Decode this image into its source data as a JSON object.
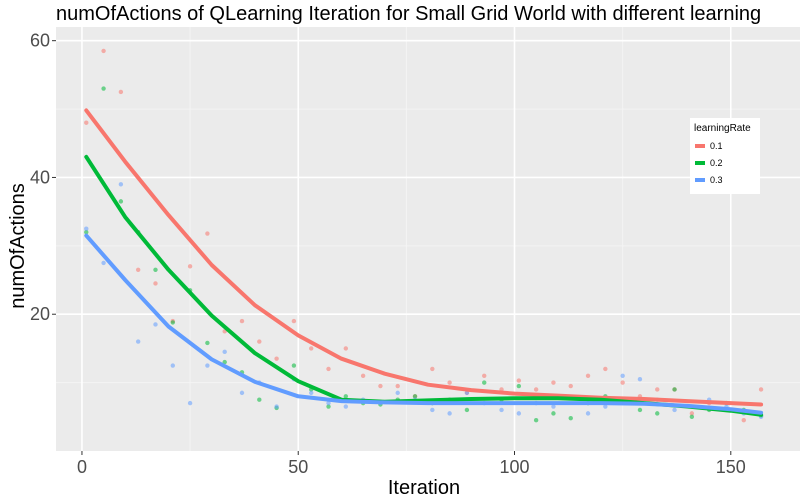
{
  "chart_data": {
    "type": "scatter",
    "title": "numOfActions of QLearning Iteration for Small Grid World with different learning",
    "xlabel": "Iteration",
    "ylabel": "numOfActions",
    "xlim": [
      -6,
      166
    ],
    "ylim": [
      0,
      62
    ],
    "xticks": [
      0,
      50,
      100,
      150
    ],
    "yticks": [
      20,
      40,
      60
    ],
    "grid": true,
    "legend": {
      "title": "learningRate",
      "placement": "right"
    },
    "series": [
      {
        "name": "0.1",
        "color": "#F8766D",
        "points": [
          [
            1,
            48
          ],
          [
            5,
            58.5
          ],
          [
            9,
            52.5
          ],
          [
            13,
            26.5
          ],
          [
            17,
            24.5
          ],
          [
            21,
            19
          ],
          [
            25,
            27
          ],
          [
            29,
            31.8
          ],
          [
            33,
            17.5
          ],
          [
            37,
            19
          ],
          [
            41,
            16
          ],
          [
            45,
            13.5
          ],
          [
            49,
            19
          ],
          [
            53,
            15
          ],
          [
            57,
            12
          ],
          [
            61,
            15
          ],
          [
            65,
            11
          ],
          [
            69,
            9.5
          ],
          [
            73,
            9.5
          ],
          [
            77,
            8
          ],
          [
            81,
            12
          ],
          [
            85,
            10
          ],
          [
            89,
            8.5
          ],
          [
            93,
            11
          ],
          [
            97,
            9
          ],
          [
            101,
            10.3
          ],
          [
            105,
            9
          ],
          [
            109,
            10
          ],
          [
            113,
            9.5
          ],
          [
            117,
            11
          ],
          [
            121,
            12
          ],
          [
            125,
            10
          ],
          [
            129,
            8
          ],
          [
            133,
            9
          ],
          [
            137,
            9
          ],
          [
            141,
            5.5
          ],
          [
            145,
            7
          ],
          [
            149,
            6
          ],
          [
            153,
            4.5
          ],
          [
            157,
            9
          ]
        ],
        "trend": [
          [
            1,
            49.8
          ],
          [
            10,
            42.3
          ],
          [
            20,
            34.5
          ],
          [
            30,
            27.2
          ],
          [
            40,
            21.3
          ],
          [
            50,
            16.9
          ],
          [
            60,
            13.5
          ],
          [
            70,
            11.3
          ],
          [
            80,
            9.7
          ],
          [
            90,
            8.9
          ],
          [
            100,
            8.4
          ],
          [
            110,
            8.1
          ],
          [
            120,
            7.8
          ],
          [
            130,
            7.6
          ],
          [
            140,
            7.3
          ],
          [
            150,
            7
          ],
          [
            157,
            6.8
          ]
        ]
      },
      {
        "name": "0.2",
        "color": "#00BA38",
        "points": [
          [
            1,
            32
          ],
          [
            5,
            53
          ],
          [
            9,
            36.5
          ],
          [
            13,
            32
          ],
          [
            17,
            26.5
          ],
          [
            21,
            18.8
          ],
          [
            25,
            23.5
          ],
          [
            29,
            15.8
          ],
          [
            33,
            13
          ],
          [
            37,
            11.5
          ],
          [
            41,
            7.5
          ],
          [
            45,
            6.3
          ],
          [
            49,
            12.5
          ],
          [
            53,
            9
          ],
          [
            57,
            6.5
          ],
          [
            61,
            8
          ],
          [
            65,
            7
          ],
          [
            69,
            6.8
          ],
          [
            73,
            7.5
          ],
          [
            77,
            8
          ],
          [
            81,
            7
          ],
          [
            85,
            7.5
          ],
          [
            89,
            6
          ],
          [
            93,
            10
          ],
          [
            97,
            7.5
          ],
          [
            101,
            9.5
          ],
          [
            105,
            4.5
          ],
          [
            109,
            5.5
          ],
          [
            113,
            4.8
          ],
          [
            117,
            7
          ],
          [
            121,
            8
          ],
          [
            125,
            7.5
          ],
          [
            129,
            6
          ],
          [
            133,
            5.5
          ],
          [
            137,
            9
          ],
          [
            141,
            5
          ],
          [
            145,
            6
          ],
          [
            149,
            7
          ],
          [
            153,
            6
          ],
          [
            157,
            5.2
          ]
        ],
        "trend": [
          [
            1,
            43
          ],
          [
            10,
            34.2
          ],
          [
            20,
            26.5
          ],
          [
            30,
            19.8
          ],
          [
            40,
            14.3
          ],
          [
            50,
            10.2
          ],
          [
            60,
            7.5
          ],
          [
            70,
            7.2
          ],
          [
            80,
            7.4
          ],
          [
            90,
            7.6
          ],
          [
            100,
            7.7
          ],
          [
            110,
            7.7
          ],
          [
            120,
            7.5
          ],
          [
            130,
            7
          ],
          [
            140,
            6.5
          ],
          [
            150,
            5.9
          ],
          [
            157,
            5.3
          ]
        ]
      },
      {
        "name": "0.3",
        "color": "#619CFF",
        "points": [
          [
            1,
            32.5
          ],
          [
            5,
            27.5
          ],
          [
            9,
            39
          ],
          [
            13,
            16
          ],
          [
            17,
            18.5
          ],
          [
            21,
            12.5
          ],
          [
            25,
            7
          ],
          [
            29,
            12.5
          ],
          [
            33,
            14.5
          ],
          [
            37,
            8.5
          ],
          [
            41,
            10
          ],
          [
            45,
            6.5
          ],
          [
            49,
            10.5
          ],
          [
            53,
            8.5
          ],
          [
            57,
            7
          ],
          [
            61,
            6.5
          ],
          [
            65,
            7.5
          ],
          [
            69,
            7
          ],
          [
            73,
            8.5
          ],
          [
            77,
            7.5
          ],
          [
            81,
            6
          ],
          [
            85,
            5.5
          ],
          [
            89,
            8.5
          ],
          [
            93,
            7
          ],
          [
            97,
            6
          ],
          [
            101,
            5.5
          ],
          [
            105,
            7
          ],
          [
            109,
            6.5
          ],
          [
            113,
            7.8
          ],
          [
            117,
            5.5
          ],
          [
            121,
            6.5
          ],
          [
            125,
            11
          ],
          [
            129,
            10.5
          ],
          [
            133,
            7.5
          ],
          [
            137,
            6
          ],
          [
            141,
            6.5
          ],
          [
            145,
            7.5
          ],
          [
            149,
            6.5
          ],
          [
            153,
            5.5
          ],
          [
            157,
            5
          ]
        ],
        "trend": [
          [
            1,
            31.5
          ],
          [
            10,
            25
          ],
          [
            20,
            18.2
          ],
          [
            30,
            13.4
          ],
          [
            40,
            10.1
          ],
          [
            50,
            8
          ],
          [
            60,
            7.3
          ],
          [
            70,
            7.1
          ],
          [
            80,
            7
          ],
          [
            90,
            7
          ],
          [
            100,
            7
          ],
          [
            110,
            7
          ],
          [
            120,
            7
          ],
          [
            130,
            6.9
          ],
          [
            140,
            6.6
          ],
          [
            150,
            6.1
          ],
          [
            157,
            5.6
          ]
        ]
      }
    ]
  }
}
